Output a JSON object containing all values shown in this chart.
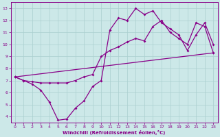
{
  "xlabel": "Windchill (Refroidissement éolien,°C)",
  "background_color": "#cce8e8",
  "grid_color": "#aacfcf",
  "line_color": "#880088",
  "xlim": [
    -0.5,
    23.5
  ],
  "ylim": [
    3.5,
    13.5
  ],
  "xticks": [
    0,
    1,
    2,
    3,
    4,
    5,
    6,
    7,
    8,
    9,
    10,
    11,
    12,
    13,
    14,
    15,
    16,
    17,
    18,
    19,
    20,
    21,
    22,
    23
  ],
  "yticks": [
    4,
    5,
    6,
    7,
    8,
    9,
    10,
    11,
    12,
    13
  ],
  "line1_x": [
    0,
    1,
    2,
    3,
    4,
    5,
    6,
    7,
    8,
    9,
    10,
    11,
    12,
    13,
    14,
    15,
    16,
    17,
    18,
    19,
    20,
    21,
    22,
    23
  ],
  "line1_y": [
    7.3,
    7.0,
    6.7,
    6.2,
    5.2,
    3.7,
    3.8,
    4.7,
    5.3,
    6.5,
    7.0,
    11.2,
    12.2,
    12.0,
    13.0,
    12.5,
    12.8,
    11.8,
    11.3,
    10.8,
    9.5,
    10.8,
    11.8,
    10.0
  ],
  "line2_x": [
    0,
    1,
    2,
    3,
    4,
    5,
    6,
    7,
    8,
    9,
    10,
    11,
    12,
    13,
    14,
    15,
    16,
    17,
    18,
    19,
    20,
    21,
    22,
    23
  ],
  "line2_y": [
    7.3,
    7.0,
    6.9,
    6.8,
    6.8,
    6.8,
    6.8,
    7.0,
    7.3,
    7.5,
    9.0,
    9.5,
    9.8,
    10.2,
    10.5,
    10.3,
    11.5,
    12.0,
    11.0,
    10.5,
    10.0,
    11.8,
    11.5,
    9.3
  ],
  "line3_x": [
    0,
    23
  ],
  "line3_y": [
    7.3,
    9.3
  ]
}
